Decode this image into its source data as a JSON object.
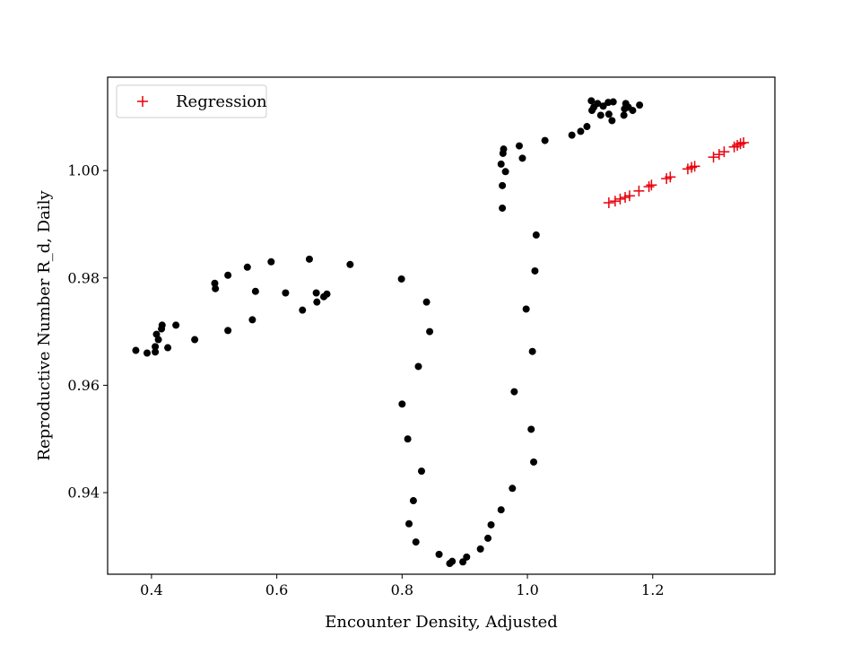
{
  "chart_data": {
    "type": "scatter",
    "title": "",
    "xlabel": "Encounter Density, Adjusted",
    "ylabel": "Reproductive Number R_d, Daily",
    "xlim": [
      0.33,
      1.395
    ],
    "ylim": [
      0.9248,
      1.0174
    ],
    "xticks": [
      0.4,
      0.6,
      0.8,
      1.0,
      1.2
    ],
    "xtick_labels": [
      "0.4",
      "0.6",
      "0.8",
      "1.0",
      "1.2"
    ],
    "yticks": [
      0.94,
      0.96,
      0.98,
      1.0
    ],
    "ytick_labels": [
      "0.94",
      "0.96",
      "0.98",
      "1.00"
    ],
    "grid": false,
    "legend_position": "top-left",
    "colors": {
      "observed": "#000000",
      "regression": "#e8000b"
    },
    "series": [
      {
        "marker": "dot",
        "color": "#000000",
        "points": [
          [
            0.375,
            0.9665
          ],
          [
            0.393,
            0.966
          ],
          [
            0.406,
            0.9662
          ],
          [
            0.406,
            0.9672
          ],
          [
            0.408,
            0.9695
          ],
          [
            0.411,
            0.9685
          ],
          [
            0.416,
            0.9705
          ],
          [
            0.417,
            0.9712
          ],
          [
            0.426,
            0.967
          ],
          [
            0.439,
            0.9712
          ],
          [
            0.469,
            0.9685
          ],
          [
            0.501,
            0.979
          ],
          [
            0.502,
            0.978
          ],
          [
            0.522,
            0.9805
          ],
          [
            0.522,
            0.9702
          ],
          [
            0.553,
            0.982
          ],
          [
            0.561,
            0.9722
          ],
          [
            0.566,
            0.9775
          ],
          [
            0.591,
            0.983
          ],
          [
            0.614,
            0.9772
          ],
          [
            0.641,
            0.974
          ],
          [
            0.652,
            0.9835
          ],
          [
            0.663,
            0.9772
          ],
          [
            0.664,
            0.9755
          ],
          [
            0.675,
            0.9765
          ],
          [
            0.68,
            0.977
          ],
          [
            0.717,
            0.9825
          ],
          [
            0.799,
            0.9798
          ],
          [
            0.8,
            0.9565
          ],
          [
            0.809,
            0.95
          ],
          [
            0.811,
            0.9342
          ],
          [
            0.818,
            0.9385
          ],
          [
            0.822,
            0.9308
          ],
          [
            0.826,
            0.9635
          ],
          [
            0.831,
            0.944
          ],
          [
            0.839,
            0.9755
          ],
          [
            0.844,
            0.97
          ],
          [
            0.859,
            0.9285
          ],
          [
            0.876,
            0.9268
          ],
          [
            0.88,
            0.9272
          ],
          [
            0.897,
            0.9271
          ],
          [
            0.903,
            0.928
          ],
          [
            0.925,
            0.9295
          ],
          [
            0.937,
            0.9315
          ],
          [
            0.942,
            0.934
          ],
          [
            0.958,
            0.9368
          ],
          [
            0.958,
            1.0012
          ],
          [
            0.96,
            0.993
          ],
          [
            0.96,
            0.9972
          ],
          [
            0.961,
            1.0032
          ],
          [
            0.962,
            1.004
          ],
          [
            0.965,
            0.9998
          ],
          [
            0.976,
            0.9408
          ],
          [
            0.979,
            0.9588
          ],
          [
            0.987,
            1.0046
          ],
          [
            0.992,
            1.0023
          ],
          [
            0.998,
            0.9742
          ],
          [
            1.006,
            0.9518
          ],
          [
            1.008,
            0.9663
          ],
          [
            1.01,
            0.9457
          ],
          [
            1.012,
            0.9813
          ],
          [
            1.014,
            0.988
          ],
          [
            1.028,
            1.0056
          ],
          [
            1.071,
            1.0066
          ],
          [
            1.085,
            1.0073
          ],
          [
            1.095,
            1.0082
          ],
          [
            1.102,
            1.013
          ],
          [
            1.103,
            1.0112
          ],
          [
            1.106,
            1.0118
          ],
          [
            1.112,
            1.0125
          ],
          [
            1.117,
            1.0103
          ],
          [
            1.121,
            1.012
          ],
          [
            1.129,
            1.0127
          ],
          [
            1.13,
            1.0105
          ],
          [
            1.135,
            1.0093
          ],
          [
            1.137,
            1.0128
          ],
          [
            1.154,
            1.0103
          ],
          [
            1.155,
            1.0115
          ],
          [
            1.157,
            1.0125
          ],
          [
            1.161,
            1.0118
          ],
          [
            1.168,
            1.0112
          ],
          [
            1.179,
            1.0122
          ]
        ]
      },
      {
        "name": "Regression",
        "marker": "plus",
        "color": "#e8000b",
        "points": [
          [
            1.13,
            0.994
          ],
          [
            1.14,
            0.9943
          ],
          [
            1.148,
            0.9947
          ],
          [
            1.156,
            0.995
          ],
          [
            1.163,
            0.9953
          ],
          [
            1.178,
            0.9962
          ],
          [
            1.194,
            0.997
          ],
          [
            1.198,
            0.9973
          ],
          [
            1.222,
            0.9985
          ],
          [
            1.228,
            0.9988
          ],
          [
            1.256,
            1.0003
          ],
          [
            1.262,
            1.0006
          ],
          [
            1.267,
            1.0008
          ],
          [
            1.297,
            1.0025
          ],
          [
            1.306,
            1.003
          ],
          [
            1.314,
            1.0035
          ],
          [
            1.33,
            1.0044
          ],
          [
            1.335,
            1.0047
          ],
          [
            1.34,
            1.005
          ],
          [
            1.345,
            1.0052
          ]
        ]
      }
    ]
  }
}
